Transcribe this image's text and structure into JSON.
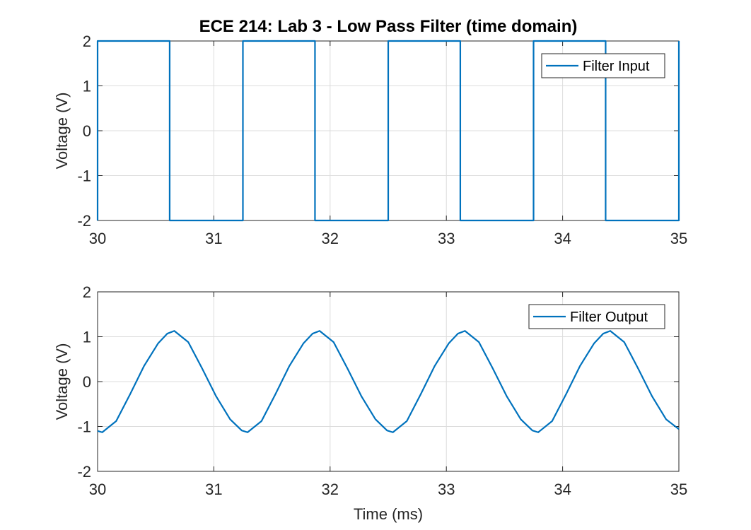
{
  "title": "ECE 214: Lab 3 - Low Pass Filter (time domain)",
  "chart_data": [
    {
      "type": "line",
      "xlabel": "",
      "ylabel": "Voltage (V)",
      "xlim": [
        30,
        35
      ],
      "ylim": [
        -2,
        2
      ],
      "xticks": [
        30,
        31,
        32,
        33,
        34,
        35
      ],
      "yticks": [
        -2,
        -1,
        0,
        1,
        2
      ],
      "grid": true,
      "legend": "top-right",
      "series": [
        {
          "name": "Filter Input",
          "color": "#0072BD",
          "x": [
            30,
            30,
            30.62,
            30.62,
            31.25,
            31.25,
            31.87,
            31.87,
            32.5,
            32.5,
            33.12,
            33.12,
            33.75,
            33.75,
            34.37,
            34.37,
            35,
            35
          ],
          "y": [
            -2,
            2,
            2,
            -2,
            -2,
            2,
            2,
            -2,
            -2,
            2,
            2,
            -2,
            -2,
            2,
            2,
            -2,
            -2,
            2
          ]
        }
      ]
    },
    {
      "type": "line",
      "xlabel": "Time (ms)",
      "ylabel": "Voltage (V)",
      "xlim": [
        30,
        35
      ],
      "ylim": [
        -2,
        2
      ],
      "xticks": [
        30,
        31,
        32,
        33,
        34,
        35
      ],
      "yticks": [
        -2,
        -1,
        0,
        1,
        2
      ],
      "grid": true,
      "legend": "top-right",
      "series": [
        {
          "name": "Filter Output",
          "color": "#0072BD",
          "period_ms": 1.25,
          "min_at_ms": 30.04,
          "max_at_ms": 30.66,
          "amplitude_v": 1.13,
          "x": [
            30,
            30.04,
            30.16,
            30.28,
            30.4,
            30.52,
            30.6,
            30.66,
            30.78,
            30.9,
            31.02,
            31.14,
            31.24,
            31.29,
            31.41,
            31.53,
            31.65,
            31.77,
            31.85,
            31.91,
            32.03,
            32.15,
            32.27,
            32.39,
            32.49,
            32.54,
            32.66,
            32.78,
            32.9,
            33.02,
            33.1,
            33.16,
            33.28,
            33.4,
            33.52,
            33.64,
            33.74,
            33.79,
            33.91,
            34.03,
            34.15,
            34.27,
            34.35,
            34.41,
            34.53,
            34.65,
            34.77,
            34.89,
            35
          ],
          "y": [
            -1.1,
            -1.13,
            -0.88,
            -0.28,
            0.35,
            0.85,
            1.07,
            1.13,
            0.88,
            0.29,
            -0.33,
            -0.84,
            -1.09,
            -1.13,
            -0.88,
            -0.28,
            0.35,
            0.85,
            1.07,
            1.13,
            0.88,
            0.29,
            -0.33,
            -0.84,
            -1.09,
            -1.13,
            -0.88,
            -0.28,
            0.35,
            0.85,
            1.07,
            1.13,
            0.88,
            0.29,
            -0.33,
            -0.84,
            -1.09,
            -1.13,
            -0.88,
            -0.28,
            0.35,
            0.85,
            1.07,
            1.13,
            0.88,
            0.29,
            -0.33,
            -0.84,
            -1.06
          ]
        }
      ]
    }
  ]
}
